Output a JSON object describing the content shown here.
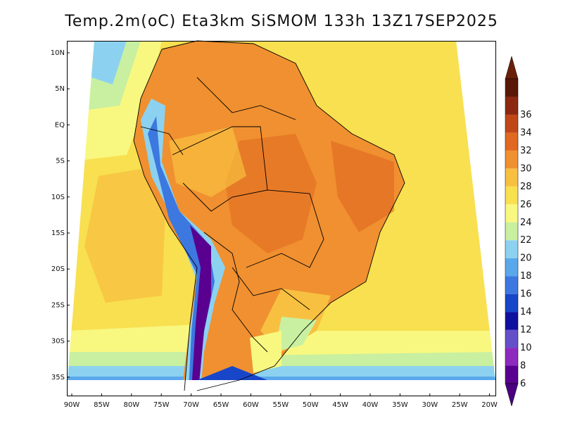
{
  "title": "Temp.2m(oC) Eta3km SiSMOM 133h 13Z17SEP2025",
  "lat_labels": [
    "10N",
    "5N",
    "EQ",
    "5S",
    "10S",
    "15S",
    "20S",
    "25S",
    "30S",
    "35S"
  ],
  "lon_labels": [
    "90W",
    "85W",
    "80W",
    "75W",
    "70W",
    "65W",
    "60W",
    "55W",
    "50W",
    "45W",
    "40W",
    "35W",
    "30W",
    "25W",
    "20W"
  ],
  "colorbar": {
    "labels": [
      "6",
      "8",
      "10",
      "12",
      "14",
      "16",
      "18",
      "20",
      "22",
      "24",
      "26",
      "28",
      "30",
      "32",
      "34",
      "36"
    ],
    "colors": [
      "#5a0090",
      "#8e2bbf",
      "#6450c8",
      "#1010a0",
      "#1846c8",
      "#3c78e0",
      "#5aa8ec",
      "#8cd2f0",
      "#c8f0a0",
      "#f8f880",
      "#f8e050",
      "#f8c040",
      "#f09030",
      "#e06820",
      "#c04818",
      "#8c2810",
      "#5a1808"
    ],
    "endpoints": {
      "low": "#4a0080",
      "high": "#6a2008"
    }
  },
  "legend_ranges_oC": [
    "<6",
    "6-8",
    "8-10",
    "10-12",
    "12-14",
    "14-16",
    "16-18",
    "18-20",
    "20-22",
    "22-24",
    "24-26",
    "26-28",
    "28-30",
    "30-32",
    "32-34",
    "34-36",
    ">36"
  ]
}
